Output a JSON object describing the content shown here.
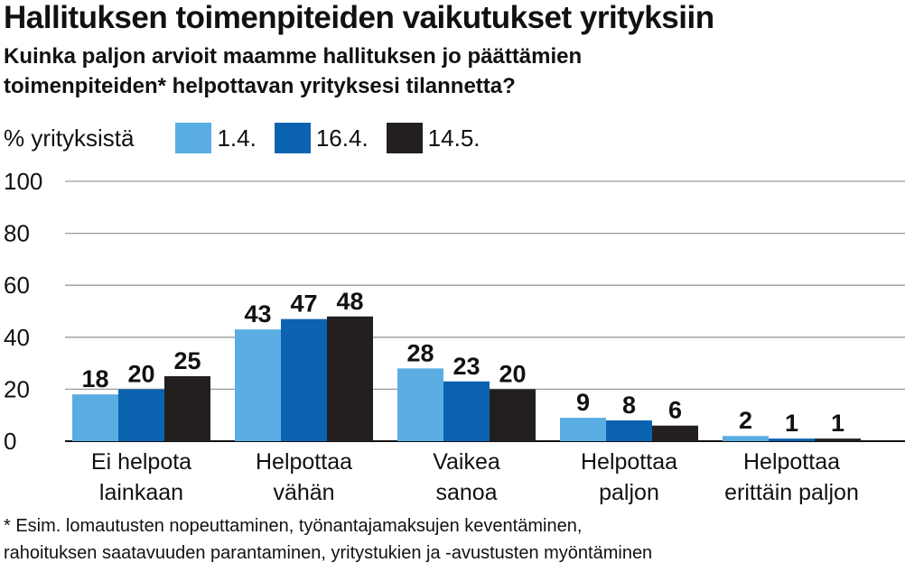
{
  "header": {
    "title": "Hallituksen toimenpiteiden vaikutukset yrityksiin",
    "subtitle_line1": "Kuinka paljon arvioit maamme hallituksen jo päättämien",
    "subtitle_line2": "toimenpiteiden* helpottavan yrityksesi tilannetta?"
  },
  "legend": {
    "unit_label": "% yrityksistä"
  },
  "footnote": {
    "line1": "* Esim. lomautusten nopeuttaminen, työnantajamaksujen keventäminen,",
    "line2": "rahoituksen saatavuuden parantaminen, yritystukien ja -avustusten myöntäminen"
  },
  "chart_data": {
    "type": "bar",
    "title": "Hallituksen toimenpiteiden vaikutukset yrityksiin",
    "ylabel": "% yrityksistä",
    "xlabel": "",
    "ylim": [
      0,
      100
    ],
    "yticks": [
      0,
      20,
      40,
      60,
      80,
      100
    ],
    "grid": true,
    "legend_position": "top",
    "categories": [
      [
        "Ei helpota",
        "lainkaan"
      ],
      [
        "Helpottaa",
        "vähän"
      ],
      [
        "Vaikea",
        "sanoa"
      ],
      [
        "Helpottaa",
        "paljon"
      ],
      [
        "Helpottaa",
        "erittäin paljon"
      ]
    ],
    "series": [
      {
        "name": "1.4.",
        "color": "#5aade2",
        "values": [
          18,
          43,
          28,
          9,
          2
        ]
      },
      {
        "name": "16.4.",
        "color": "#0b63b0",
        "values": [
          20,
          47,
          23,
          8,
          1
        ]
      },
      {
        "name": "14.5.",
        "color": "#231f20",
        "values": [
          25,
          48,
          20,
          6,
          1
        ]
      }
    ]
  }
}
